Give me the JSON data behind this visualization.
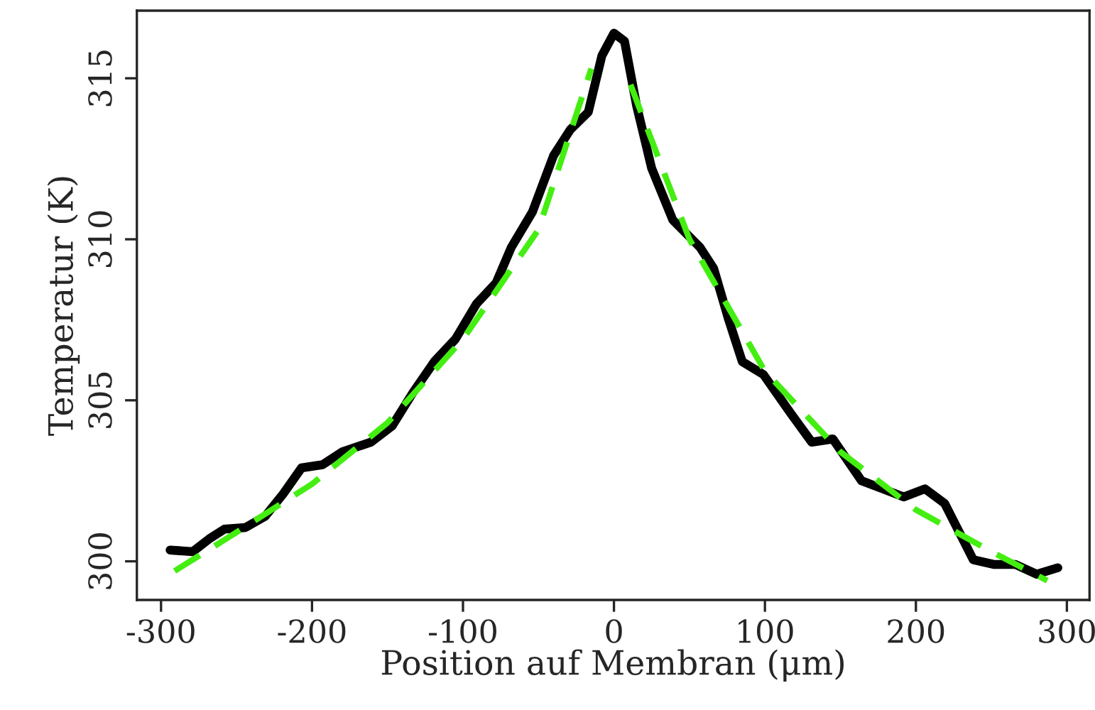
{
  "chart_data": {
    "type": "line",
    "xlabel": "Position auf Membran (μm)",
    "ylabel": "Temperatur (K)",
    "xlim": [
      -316,
      315
    ],
    "ylim": [
      298.8,
      317.1
    ],
    "xticks": [
      -300,
      -200,
      -100,
      0,
      100,
      200,
      300
    ],
    "yticks": [
      300,
      305,
      310,
      315
    ],
    "grid": false,
    "series": [
      {
        "color": "#000000",
        "line_style": "solid",
        "x": [
          -294,
          -279,
          -268,
          -258,
          -244,
          -231,
          -219,
          -207,
          -193,
          -180,
          -161,
          -147,
          -133,
          -119,
          -105,
          -91,
          -78,
          -68,
          -54,
          -40,
          -29,
          -17,
          -8,
          0,
          7,
          15,
          25,
          39,
          57,
          66,
          76,
          85,
          99,
          117,
          131,
          145,
          164,
          178,
          192,
          206,
          219,
          238,
          252,
          266,
          280,
          294
        ],
        "values": [
          300.35,
          300.3,
          300.7,
          301.0,
          301.05,
          301.4,
          302.1,
          302.9,
          303.0,
          303.4,
          303.7,
          304.2,
          305.25,
          306.2,
          306.9,
          308.0,
          308.65,
          309.75,
          310.85,
          312.6,
          313.4,
          313.95,
          315.7,
          316.4,
          316.15,
          314.15,
          312.2,
          310.6,
          309.75,
          309.1,
          307.5,
          306.2,
          305.8,
          304.6,
          303.7,
          303.8,
          302.5,
          302.25,
          302.0,
          302.25,
          301.8,
          300.05,
          299.9,
          299.9,
          299.6,
          299.8
        ]
      },
      {
        "color": "#44ee11",
        "line_style": "dashed",
        "x": [
          -291,
          -250,
          -200,
          -150,
          -100,
          -50,
          -15,
          null,
          11,
          50,
          100,
          150,
          200,
          250,
          287
        ],
        "values": [
          299.7,
          300.9,
          302.4,
          304.3,
          306.9,
          310.3,
          315.3,
          null,
          314.8,
          310.0,
          305.9,
          303.4,
          301.6,
          300.3,
          299.4
        ]
      }
    ]
  }
}
